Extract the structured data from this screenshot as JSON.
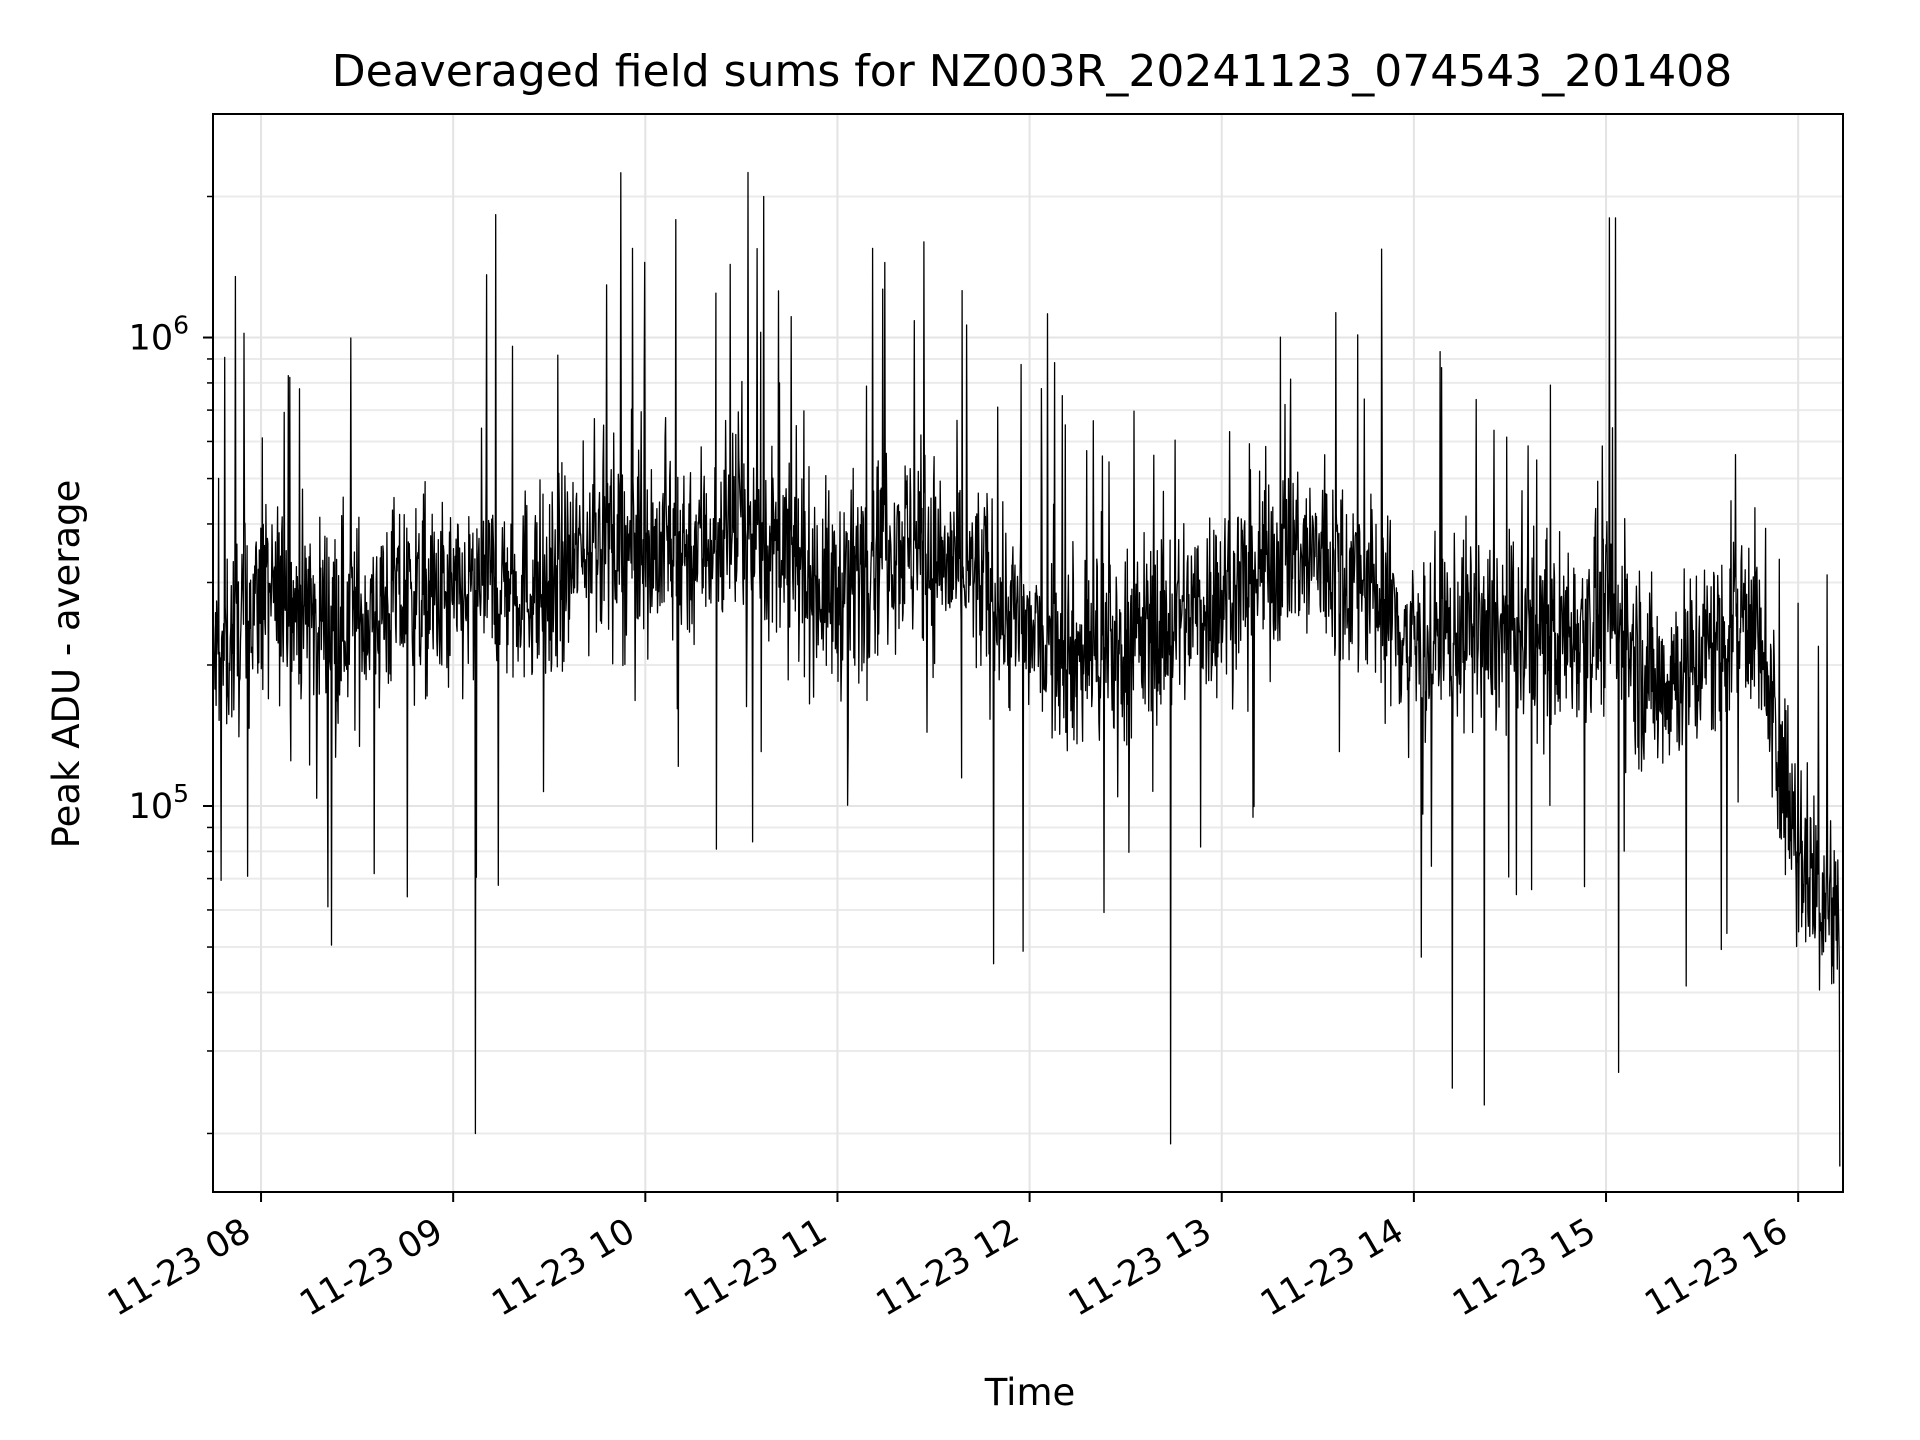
{
  "chart_data": {
    "type": "line",
    "title": "Deaveraged field sums for NZ003R_20241123_074543_201408",
    "xlabel": "Time",
    "ylabel": "Peak ADU - average",
    "yscale": "log",
    "ylim": [
      15000,
      3000000
    ],
    "xlim": [
      "2024-11-23 07:45",
      "2024-11-23 16:14"
    ],
    "grid": true,
    "line_color": "#000000",
    "x_tick_labels": [
      "11-23 08",
      "11-23 09",
      "11-23 10",
      "11-23 11",
      "11-23 12",
      "11-23 13",
      "11-23 14",
      "11-23 15",
      "11-23 16"
    ],
    "y_tick_labels": [
      {
        "value": 100000,
        "base": "10",
        "exp": "5"
      },
      {
        "value": 1000000,
        "base": "10",
        "exp": "6"
      }
    ],
    "series": [
      {
        "x": [
          "2024-11-23 07:45",
          "2024-11-23 08:00",
          "2024-11-23 08:15",
          "2024-11-23 08:30",
          "2024-11-23 08:45",
          "2024-11-23 09:00",
          "2024-11-23 09:15",
          "2024-11-23 09:30",
          "2024-11-23 09:45",
          "2024-11-23 10:00",
          "2024-11-23 10:15",
          "2024-11-23 10:30",
          "2024-11-23 10:45",
          "2024-11-23 11:00",
          "2024-11-23 11:15",
          "2024-11-23 11:30",
          "2024-11-23 11:45",
          "2024-11-23 12:00",
          "2024-11-23 12:15",
          "2024-11-23 12:30",
          "2024-11-23 12:45",
          "2024-11-23 13:00",
          "2024-11-23 13:15",
          "2024-11-23 13:30",
          "2024-11-23 13:45",
          "2024-11-23 14:00",
          "2024-11-23 14:15",
          "2024-11-23 14:30",
          "2024-11-23 14:45",
          "2024-11-23 15:00",
          "2024-11-23 15:15",
          "2024-11-23 15:30",
          "2024-11-23 15:45",
          "2024-11-23 16:00",
          "2024-11-23 16:10"
        ],
        "values": [
          200000,
          280000,
          260000,
          250000,
          280000,
          270000,
          300000,
          290000,
          380000,
          350000,
          360000,
          400000,
          330000,
          280000,
          380000,
          340000,
          300000,
          230000,
          210000,
          220000,
          250000,
          280000,
          330000,
          340000,
          300000,
          220000,
          240000,
          230000,
          230000,
          260000,
          180000,
          210000,
          270000,
          80000,
          60000
        ],
        "peaks": [
          {
            "x": "2024-11-23 07:52",
            "value": 1350000
          },
          {
            "x": "2024-11-23 09:56",
            "value": 1550000
          },
          {
            "x": "2024-11-23 10:32",
            "value": 2250000
          },
          {
            "x": "2024-11-23 10:37",
            "value": 2000000
          },
          {
            "x": "2024-11-23 11:11",
            "value": 1550000
          },
          {
            "x": "2024-11-23 11:27",
            "value": 1600000
          },
          {
            "x": "2024-11-23 15:01",
            "value": 1800000
          },
          {
            "x": "2024-11-23 15:03",
            "value": 1800000
          }
        ],
        "dips": [
          {
            "x": "2024-11-23 09:07",
            "value": 20000
          },
          {
            "x": "2024-11-23 12:44",
            "value": 19000
          },
          {
            "x": "2024-11-23 14:12",
            "value": 25000
          },
          {
            "x": "2024-11-23 14:22",
            "value": 23000
          },
          {
            "x": "2024-11-23 15:04",
            "value": 27000
          },
          {
            "x": "2024-11-23 16:13",
            "value": 17000
          }
        ]
      }
    ]
  }
}
